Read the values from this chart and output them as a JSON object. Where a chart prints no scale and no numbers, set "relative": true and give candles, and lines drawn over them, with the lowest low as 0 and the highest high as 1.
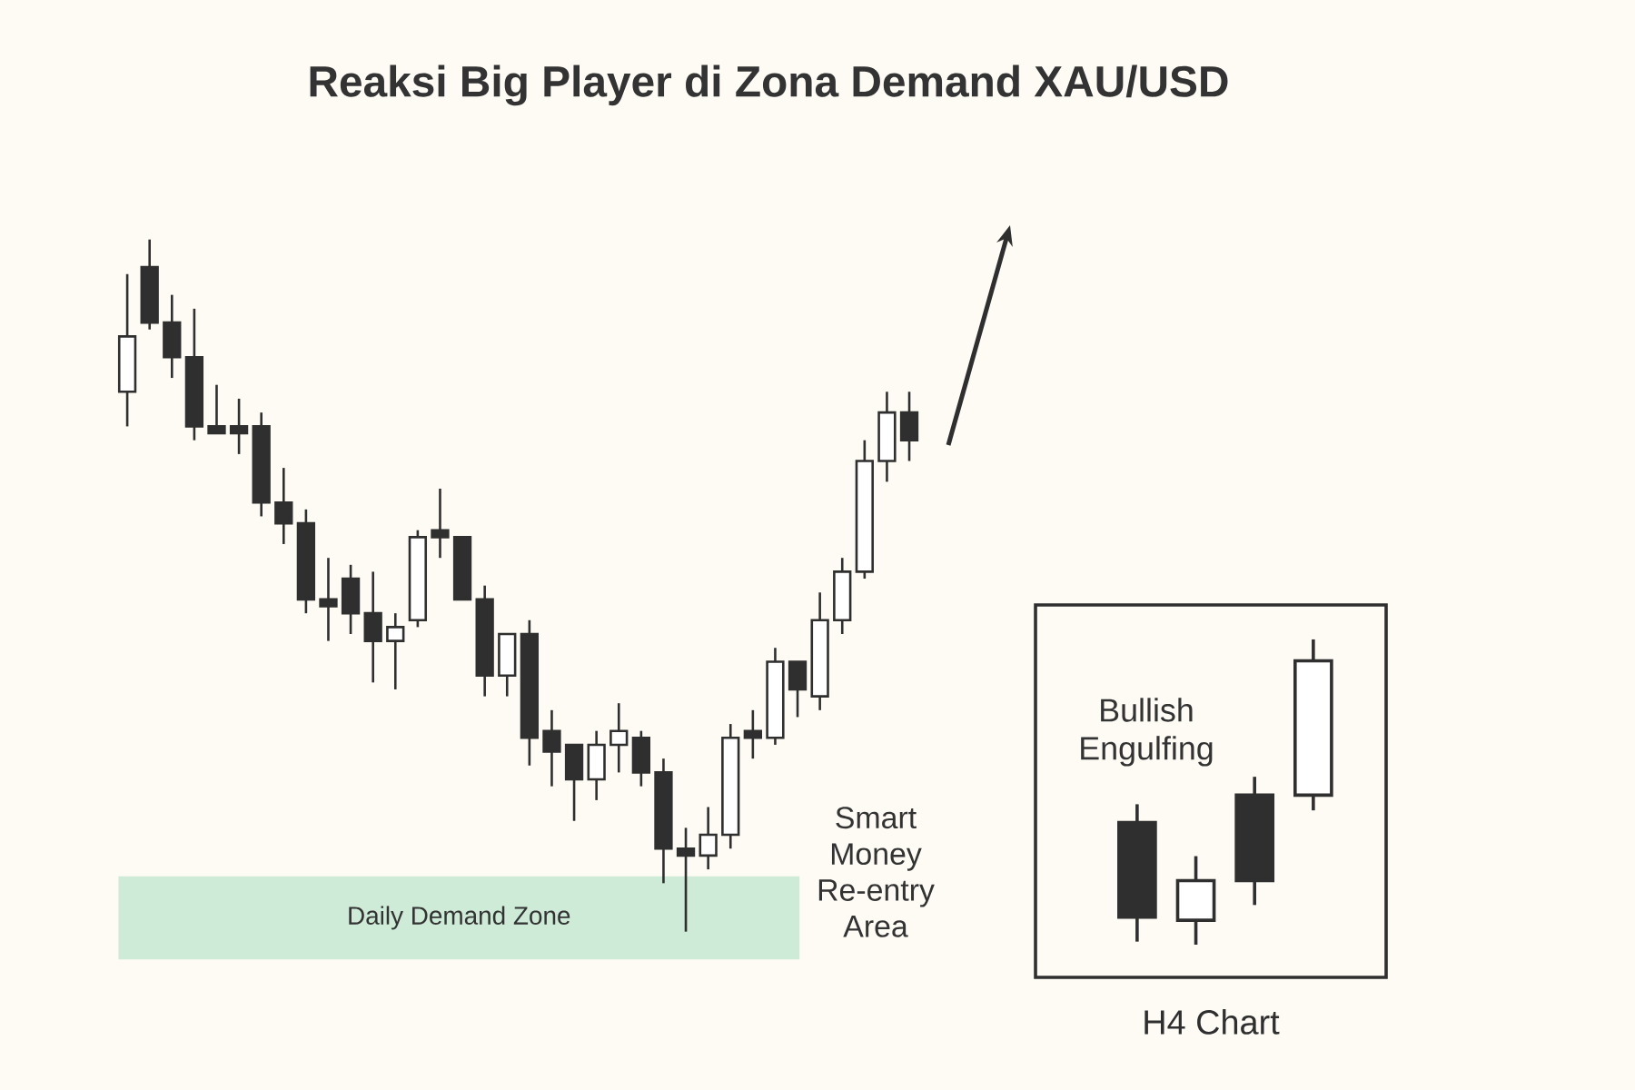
{
  "chart_data": [
    {
      "type": "candlestick",
      "title": "Reaksi Big Player di Zona Demand XAU/USD",
      "relative": true,
      "categories": [
        null,
        null,
        null,
        null,
        null,
        null,
        null,
        null,
        null,
        null,
        null,
        null,
        null,
        null,
        null,
        null,
        null,
        null,
        null,
        null,
        null,
        null,
        null,
        null,
        null,
        null,
        null,
        null,
        null,
        null,
        null,
        null,
        null,
        null,
        null,
        null
      ],
      "ohlc": [
        [
          0.78,
          0.95,
          0.73,
          0.86
        ],
        [
          0.96,
          1,
          0.87,
          0.88
        ],
        [
          0.88,
          0.92,
          0.8,
          0.83
        ],
        [
          0.83,
          0.9,
          0.71,
          0.73
        ],
        [
          0.73,
          0.79,
          0.72,
          0.72
        ],
        [
          0.73,
          0.77,
          0.69,
          0.72
        ],
        [
          0.73,
          0.75,
          0.6,
          0.62
        ],
        [
          0.62,
          0.67,
          0.56,
          0.59
        ],
        [
          0.59,
          0.61,
          0.46,
          0.48
        ],
        [
          0.48,
          0.54,
          0.42,
          0.47
        ],
        [
          0.51,
          0.53,
          0.43,
          0.46
        ],
        [
          0.46,
          0.52,
          0.36,
          0.42
        ],
        [
          0.42,
          0.46,
          0.35,
          0.44
        ],
        [
          0.45,
          0.58,
          0.44,
          0.57
        ],
        [
          0.58,
          0.64,
          0.54,
          0.57
        ],
        [
          0.57,
          0.57,
          0.48,
          0.48
        ],
        [
          0.48,
          0.5,
          0.34,
          0.37
        ],
        [
          0.37,
          0.43,
          0.34,
          0.43
        ],
        [
          0.43,
          0.45,
          0.24,
          0.28
        ],
        [
          0.29,
          0.32,
          0.21,
          0.26
        ],
        [
          0.27,
          0.27,
          0.16,
          0.22
        ],
        [
          0.22,
          0.29,
          0.19,
          0.27
        ],
        [
          0.27,
          0.33,
          0.23,
          0.29
        ],
        [
          0.28,
          0.29,
          0.21,
          0.23
        ],
        [
          0.23,
          0.25,
          0.07,
          0.12
        ],
        [
          0.12,
          0.15,
          0,
          0.11
        ],
        [
          0.11,
          0.18,
          0.09,
          0.14
        ],
        [
          0.14,
          0.3,
          0.12,
          0.28
        ],
        [
          0.29,
          0.32,
          0.25,
          0.28
        ],
        [
          0.28,
          0.41,
          0.27,
          0.39
        ],
        [
          0.39,
          0.39,
          0.31,
          0.35
        ],
        [
          0.34,
          0.49,
          0.32,
          0.45
        ],
        [
          0.45,
          0.54,
          0.43,
          0.52
        ],
        [
          0.52,
          0.71,
          0.51,
          0.68
        ],
        [
          0.68,
          0.78,
          0.65,
          0.75
        ],
        [
          0.75,
          0.78,
          0.68,
          0.71
        ]
      ],
      "bands": [
        {
          "axis": "y",
          "from": -0.04,
          "to": 0.08,
          "label": "Daily Demand Zone",
          "color": "#cdebd6"
        }
      ],
      "annotations": [
        "Smart Money Re-entry Area"
      ]
    },
    {
      "type": "candlestick",
      "relative": true,
      "xlabel": "H4 Chart",
      "categories": [
        null,
        null,
        null,
        null
      ],
      "ohlc": [
        [
          0.4,
          0.46,
          0.01,
          0.09
        ],
        [
          0.08,
          0.29,
          0,
          0.21
        ],
        [
          0.49,
          0.55,
          0.13,
          0.21
        ],
        [
          0.49,
          1,
          0.44,
          0.93
        ]
      ],
      "annotations": [
        "Bullish Engulfing"
      ]
    }
  ]
}
